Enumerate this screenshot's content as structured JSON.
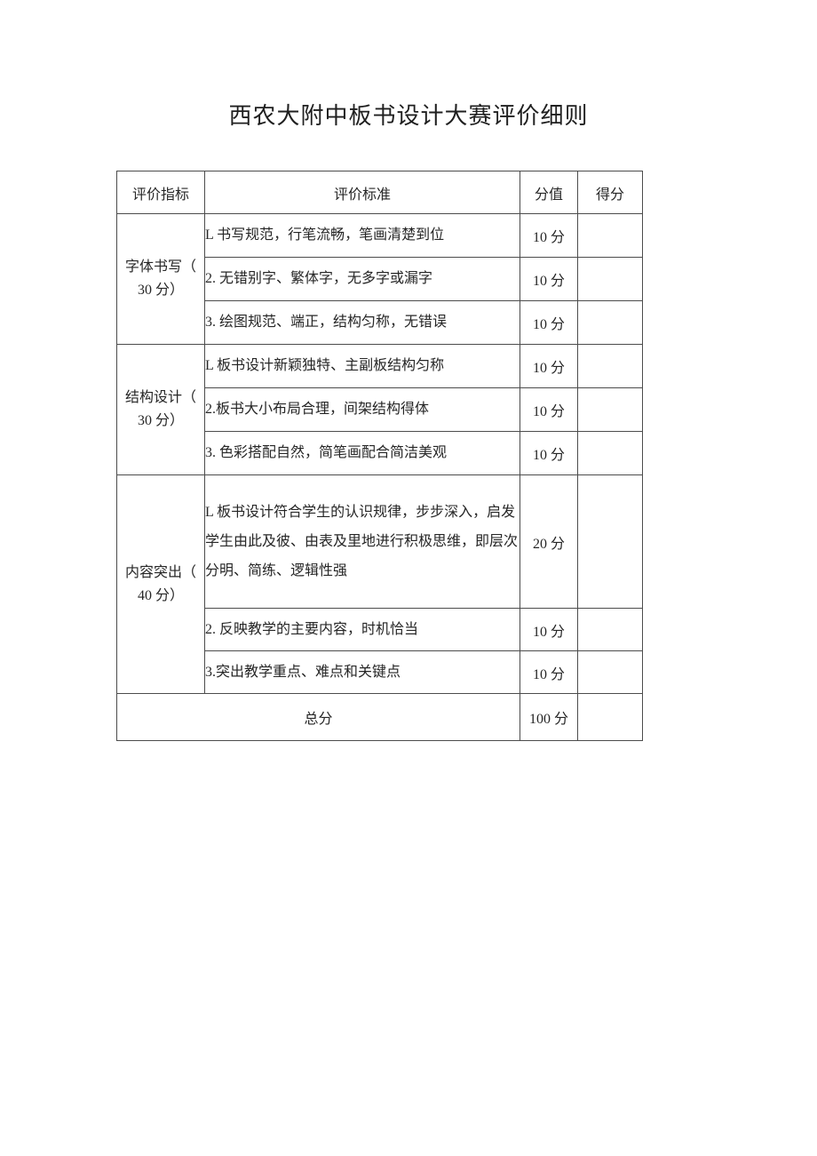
{
  "document": {
    "title": "西农大附中板书设计大赛评价细则"
  },
  "table": {
    "headers": {
      "indicator": "评价指标",
      "criteria": "评价标准",
      "score": "分值",
      "gained": "得分"
    },
    "groups": [
      {
        "indicator_line1": "字体书写（",
        "indicator_line2": "30 分）",
        "rows": [
          {
            "criterion": "L 书写规范，行笔流畅，笔画清楚到位",
            "score": "10 分",
            "gained": ""
          },
          {
            "criterion": "2. 无错别字、繁体字，无多字或漏字",
            "score": "10 分",
            "gained": ""
          },
          {
            "criterion": "3. 绘图规范、端正，结构匀称，无错误",
            "score": "10 分",
            "gained": ""
          }
        ]
      },
      {
        "indicator_line1": "结构设计（",
        "indicator_line2": "30 分）",
        "rows": [
          {
            "criterion": "L 板书设计新颖独特、主副板结构匀称",
            "score": "10 分",
            "gained": ""
          },
          {
            "criterion": "2.板书大小布局合理，间架结构得体",
            "score": "10 分",
            "gained": ""
          },
          {
            "criterion": "3. 色彩搭配自然，简笔画配合简洁美观",
            "score": "10 分",
            "gained": ""
          }
        ]
      },
      {
        "indicator_line1": "内容突出（",
        "indicator_line2": "40 分）",
        "rows": [
          {
            "criterion": "L 板书设计符合学生的认识规律，步步深入，启发学生由此及彼、由表及里地进行积极思维，即层次分明、简练、逻辑性强",
            "score": "20 分",
            "gained": ""
          },
          {
            "criterion": "2. 反映教学的主要内容，时机恰当",
            "score": "10 分",
            "gained": ""
          },
          {
            "criterion": "3.突出教学重点、难点和关键点",
            "score": "10 分",
            "gained": ""
          }
        ]
      }
    ],
    "total_row": {
      "label": "总分",
      "score": "100 分",
      "gained": ""
    }
  }
}
